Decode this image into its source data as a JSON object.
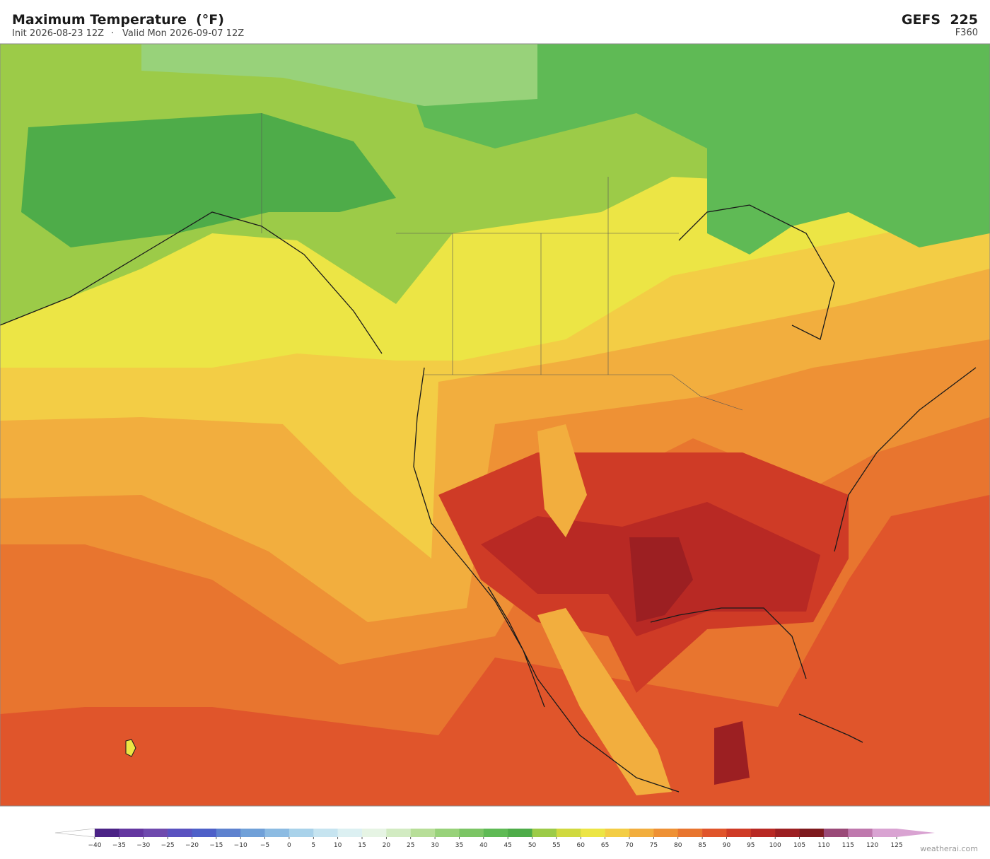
{
  "header": {
    "title": "Maximum Temperature  (°F)",
    "init": "Init 2026-08-23 12Z",
    "separator": "·",
    "valid": "Valid Mon 2026-09-07 12Z",
    "model": "GEFS  225",
    "step": "F360"
  },
  "colorbar": {
    "ticks": [
      {
        "value": -40,
        "label": "−40"
      },
      {
        "value": -35,
        "label": "−35"
      },
      {
        "value": -30,
        "label": "−30"
      },
      {
        "value": -25,
        "label": "−25"
      },
      {
        "value": -20,
        "label": "−20"
      },
      {
        "value": -15,
        "label": "−15"
      },
      {
        "value": -10,
        "label": "−10"
      },
      {
        "value": -5,
        "label": "−5"
      },
      0,
      5,
      10,
      15,
      20,
      25,
      30,
      35,
      40,
      45,
      50,
      55,
      60,
      65,
      70,
      75,
      80,
      85,
      90,
      95,
      100,
      105,
      110,
      115,
      120,
      125
    ],
    "colors": [
      "#4b2386",
      "#6437a0",
      "#6f4aae",
      "#5a52c0",
      "#4e60c8",
      "#5e82cf",
      "#70a0d8",
      "#8cbbe2",
      "#a9d2ea",
      "#c6e4f0",
      "#dcf0f2",
      "#e6f4e4",
      "#d2ebc2",
      "#b7de98",
      "#98d27a",
      "#7cc565",
      "#5fba55",
      "#4eac49",
      "#9ccb48",
      "#d0d93f",
      "#ece545",
      "#f3cd45",
      "#f2ae3e",
      "#ee9135",
      "#e8752f",
      "#e0552b",
      "#cf3b26",
      "#b82924",
      "#9c1f22",
      "#7e1a1e",
      "#9a4a78",
      "#bf78ad",
      "#d9a3d2"
    ],
    "under_color": "#ffffff",
    "over_color": "#d9a3d2"
  },
  "footer": {
    "credit": "weatherai.com"
  }
}
